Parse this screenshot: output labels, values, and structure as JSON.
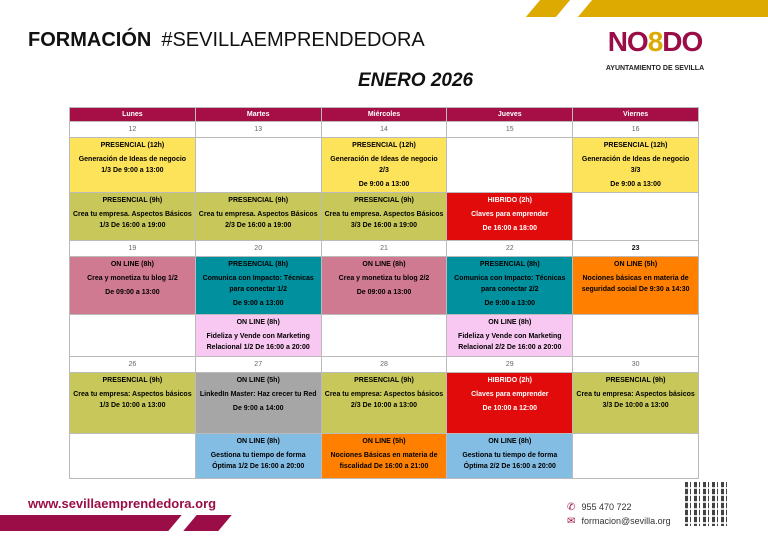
{
  "header": {
    "title_bold": "FORMACIÓN",
    "title_hashtag": "#SEVILLAEMPRENDEDORA",
    "month": "ENERO  2026"
  },
  "logo": {
    "mark": "NO8DO",
    "subtitle": "AYUNTAMIENTO DE SEVILLA"
  },
  "colors": {
    "brand": "#9b0d47",
    "gold": "#dcaa00",
    "yellow": "#fde35a",
    "olive": "#c8c85a",
    "red": "#e20b0b",
    "rose": "#d07a92",
    "teal": "#00909e",
    "orange": "#ff8000",
    "lightpink": "#f9c8f2",
    "gray": "#a6a6a6",
    "lightblue": "#84bde4"
  },
  "days": [
    "Lunes",
    "Martes",
    "Miércoles",
    "Jueves",
    "Viernes"
  ],
  "weeks": [
    {
      "dates": [
        "12",
        "13",
        "14",
        "15",
        "16"
      ],
      "bold_dates": [],
      "rows": [
        [
          {
            "mode": "PRESENCIAL (12h)",
            "title": "Generación de Ideas de negocio 1/3 De 9:00 a 13:00",
            "time": "",
            "color": "yellow"
          },
          null,
          {
            "mode": "PRESENCIAL (12h)",
            "title": "Generación de Ideas de negocio 2/3",
            "time": "De 9:00 a 13:00",
            "color": "yellow"
          },
          null,
          {
            "mode": "PRESENCIAL (12h)",
            "title": "Generación de Ideas de negocio 3/3",
            "time": "De 9:00 a 13:00",
            "color": "yellow"
          }
        ],
        [
          {
            "mode": "PRESENCIAL (9h)",
            "title": "Crea tu empresa. Aspectos Básicos 1/3 De 16:00 a 19:00",
            "time": "",
            "color": "olive"
          },
          {
            "mode": "PRESENCIAL (9h)",
            "title": "Crea tu empresa. Aspectos Básicos 2/3 De 16:00 a 19:00",
            "time": "",
            "color": "olive"
          },
          {
            "mode": "PRESENCIAL (9h)",
            "title": "Crea tu empresa. Aspectos Básicos 3/3 De 16:00 a 19:00",
            "time": "",
            "color": "olive"
          },
          {
            "mode": "HIBRIDO (2h)",
            "title": "Claves para emprender",
            "time": "De 16:00 a 18:00",
            "color": "red",
            "light": true
          },
          null
        ]
      ]
    },
    {
      "dates": [
        "19",
        "20",
        "21",
        "22",
        "23"
      ],
      "bold_dates": [
        "23"
      ],
      "rows": [
        [
          {
            "mode": "ON LINE (8h)",
            "title": "Crea y monetiza tu blog 1/2",
            "time": "De 09:00 a 13:00",
            "color": "rose"
          },
          {
            "mode": "PRESENCIAL (8h)",
            "title": "Comunica con Impacto: Técnicas para conectar 1/2",
            "time": "De 9:00 a 13:00",
            "color": "teal"
          },
          {
            "mode": "ON LINE (8h)",
            "title": "Crea y monetiza tu blog 2/2",
            "time": "De 09:00 a 13:00",
            "color": "rose"
          },
          {
            "mode": "PRESENCIAL (8h)",
            "title": "Comunica con Impacto: Técnicas para conectar 2/2",
            "time": "De 9:00 a 13:00",
            "color": "teal"
          },
          {
            "mode": "ON LINE (5h)",
            "title": "Nociones básicas en materia de seguridad social De 9:30 a 14:30",
            "time": "",
            "color": "orange"
          }
        ],
        [
          null,
          {
            "mode": "ON LINE (8h)",
            "title": "Fideliza y Vende con Marketing Relacional 1/2 De 16:00 a 20:00",
            "time": "",
            "color": "lightpink"
          },
          null,
          {
            "mode": "ON LINE (8h)",
            "title": "Fideliza y Vende con Marketing Relacional 2/2 De 16:00 a 20:00",
            "time": "",
            "color": "lightpink"
          },
          null
        ]
      ]
    },
    {
      "dates": [
        "26",
        "27",
        "28",
        "29",
        "30"
      ],
      "bold_dates": [],
      "rows": [
        [
          {
            "mode": "PRESENCIAL (9h)",
            "title": "Crea tu empresa: Aspectos básicos 1/3 De 10:00 a 13:00",
            "time": "",
            "color": "olive"
          },
          {
            "mode": "ON LINE (5h)",
            "title": "LinkedIn Master: Haz crecer tu Red",
            "time": "De 9:00 a 14:00",
            "color": "gray"
          },
          {
            "mode": "PRESENCIAL (9h)",
            "title": "Crea tu empresa: Aspectos básicos 2/3 De 10:00 a 13:00",
            "time": "",
            "color": "olive"
          },
          {
            "mode": "HIBRIDO (2h)",
            "title": "Claves para emprender",
            "time": "De 10:00 a 12:00",
            "color": "red",
            "light": true
          },
          {
            "mode": "PRESENCIAL (9h)",
            "title": "Crea tu empresa: Aspectos básicos 3/3 De 10:00 a 13:00",
            "time": "",
            "color": "olive"
          }
        ],
        [
          null,
          {
            "mode": "ON LINE (8h)",
            "title": "Gestiona tu tiempo de forma Óptima 1/2 De 16:00 a 20:00",
            "time": "",
            "color": "lightblue"
          },
          {
            "mode": "ON LINE (5h)",
            "title": "Nociones Básicas en materia de fiscalidad De 16:00 a 21:00",
            "time": "",
            "color": "orange"
          },
          {
            "mode": "ON LINE (8h)",
            "title": "Gestiona tu tiempo de forma Óptima 2/2 De 16:00 a 20:00",
            "time": "",
            "color": "lightblue"
          },
          null
        ]
      ]
    }
  ],
  "footer": {
    "website": "www.sevillaemprendedora.org",
    "phone": "955 470 722",
    "email": "formacion@sevilla.org",
    "phone_icon": "phone-icon",
    "email_icon": "envelope-icon"
  }
}
